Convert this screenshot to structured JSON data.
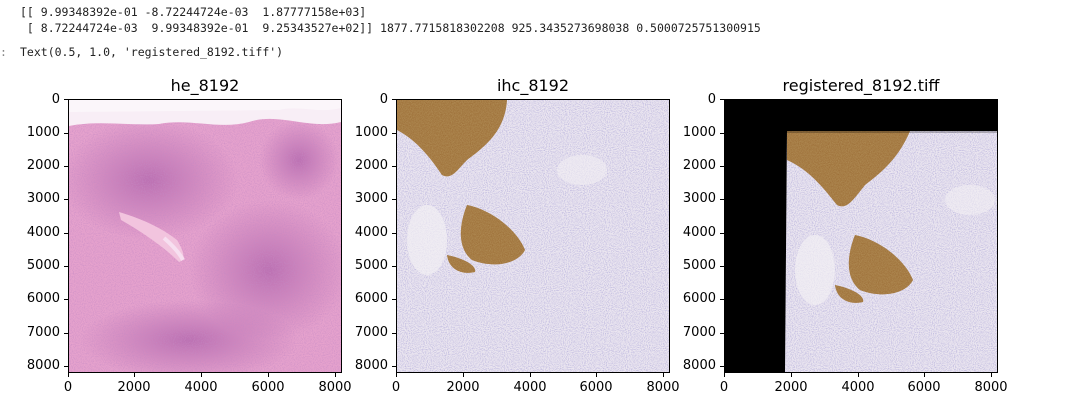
{
  "output": {
    "matrix_line1": "[[ 9.99348392e-01 -8.72244724e-03  1.87777158e+03]",
    "matrix_line2": " [ 8.72244724e-03  9.99348392e-01  9.25343527e+02]] 1877.7715818302208 925.3435273698038 0.5000725751300915",
    "prompt": ":",
    "text_repr": "Text(0.5, 1.0, 'registered_8192.tiff')"
  },
  "chart_data": [
    {
      "type": "image",
      "title": "he_8192",
      "xlim": [
        0,
        8192
      ],
      "ylim": [
        8192,
        0
      ],
      "xticks": [
        "0",
        "2000",
        "4000",
        "6000",
        "8000"
      ],
      "yticks": [
        "0",
        "1000",
        "2000",
        "3000",
        "4000",
        "5000",
        "6000",
        "7000",
        "8000"
      ],
      "colors": {
        "tissue": "#e7a3cf",
        "dense": "#b85fa9",
        "background": "#f6eef5"
      }
    },
    {
      "type": "image",
      "title": "ihc_8192",
      "xlim": [
        0,
        8192
      ],
      "ylim": [
        8192,
        0
      ],
      "xticks": [
        "0",
        "2000",
        "4000",
        "6000",
        "8000"
      ],
      "yticks": [
        "0",
        "1000",
        "2000",
        "3000",
        "4000",
        "5000",
        "6000",
        "7000",
        "8000"
      ],
      "colors": {
        "tissue": "#e9e4ef",
        "nuclei": "#7d75b3",
        "stain": "#8a5a2a"
      }
    },
    {
      "type": "image",
      "title": "registered_8192.tiff",
      "xlim": [
        0,
        8192
      ],
      "ylim": [
        8192,
        0
      ],
      "xticks": [
        "0",
        "2000",
        "4000",
        "6000",
        "8000"
      ],
      "yticks": [
        "0",
        "1000",
        "2000",
        "3000",
        "4000",
        "5000",
        "6000",
        "7000",
        "8000"
      ],
      "colors": {
        "tissue": "#e9e4ef",
        "nuclei": "#7d75b3",
        "stain": "#8a5a2a",
        "padding": "#000000"
      }
    }
  ]
}
